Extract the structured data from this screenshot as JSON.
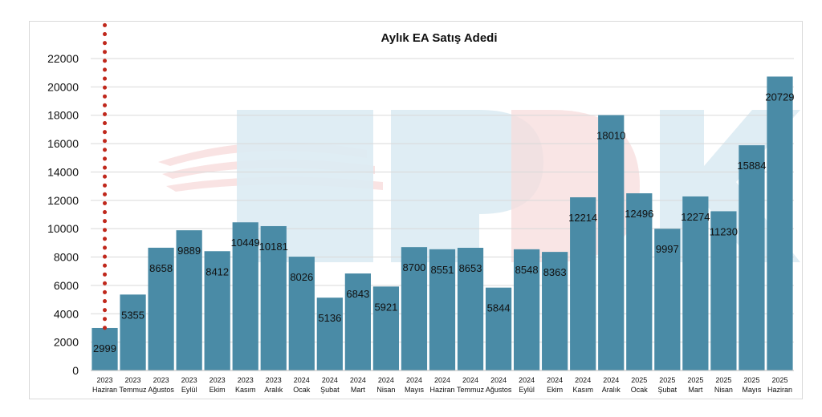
{
  "chart_data": {
    "type": "bar",
    "title": "Aylık EA Satış Adedi",
    "xlabel": "",
    "ylabel": "",
    "ylim": [
      0,
      22000
    ],
    "yticks": [
      0,
      2000,
      4000,
      6000,
      8000,
      10000,
      12000,
      14000,
      16000,
      18000,
      20000,
      22000
    ],
    "categories": [
      {
        "year": "2023",
        "month": "Haziran"
      },
      {
        "year": "2023",
        "month": "Temmuz"
      },
      {
        "year": "2023",
        "month": "Ağustos"
      },
      {
        "year": "2023",
        "month": "Eylül"
      },
      {
        "year": "2023",
        "month": "Ekim"
      },
      {
        "year": "2023",
        "month": "Kasım"
      },
      {
        "year": "2023",
        "month": "Aralık"
      },
      {
        "year": "2024",
        "month": "Ocak"
      },
      {
        "year": "2024",
        "month": "Şubat"
      },
      {
        "year": "2024",
        "month": "Mart"
      },
      {
        "year": "2024",
        "month": "Nisan"
      },
      {
        "year": "2024",
        "month": "Mayıs"
      },
      {
        "year": "2024",
        "month": "Haziran"
      },
      {
        "year": "2024",
        "month": "Temmuz"
      },
      {
        "year": "2024",
        "month": "Ağustos"
      },
      {
        "year": "2024",
        "month": "Eylül"
      },
      {
        "year": "2024",
        "month": "Ekim"
      },
      {
        "year": "2024",
        "month": "Kasım"
      },
      {
        "year": "2024",
        "month": "Aralık"
      },
      {
        "year": "2025",
        "month": "Ocak"
      },
      {
        "year": "2025",
        "month": "Şubat"
      },
      {
        "year": "2025",
        "month": "Mart"
      },
      {
        "year": "2025",
        "month": "Nisan"
      },
      {
        "year": "2025",
        "month": "Mayıs"
      },
      {
        "year": "2025",
        "month": "Haziran"
      }
    ],
    "values": [
      2999,
      5355,
      8658,
      9889,
      8412,
      10449,
      10181,
      8026,
      5136,
      6843,
      5921,
      8700,
      8551,
      8653,
      5844,
      8548,
      8363,
      12214,
      18010,
      12496,
      9997,
      12274,
      11230,
      15884,
      20729
    ],
    "trendline": {
      "type": "logarithmic",
      "style": "dotted"
    },
    "grid": true,
    "legend": "none",
    "watermark": "EPDK",
    "colors": {
      "bar": "#4a8ba6",
      "trend": "#c0281c",
      "grid": "#d9d9d9",
      "watermark_blue": "#dcebf3",
      "watermark_red": "#f7dcdc"
    }
  }
}
